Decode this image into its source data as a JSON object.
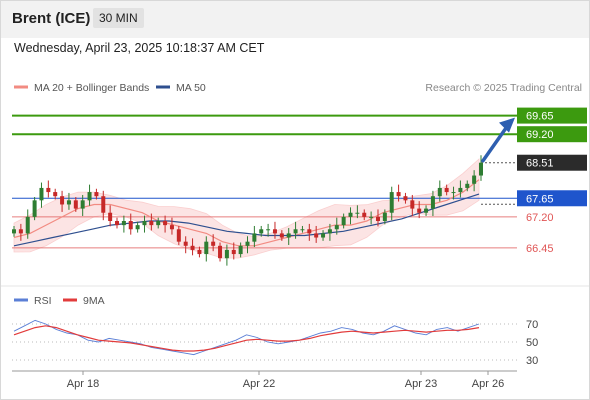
{
  "header": {
    "instrument": "Brent (ICE)",
    "timeframe": "30 MIN",
    "datetime": "Wednesday, April 23, 2025 10:18:37 AM CET"
  },
  "legend": {
    "items": [
      {
        "label": "MA 20 + Bollinger Bands",
        "color": "#f28b82"
      },
      {
        "label": "MA 50",
        "color": "#2e4f8f"
      }
    ],
    "credit": "Research © 2025 Trading Central"
  },
  "rsi_legend": {
    "items": [
      {
        "label": "RSI",
        "color": "#5b7fd6"
      },
      {
        "label": "9MA",
        "color": "#e23b3b"
      }
    ]
  },
  "chart_data": [
    {
      "type": "candlestick",
      "y_range": [
        65.6,
        70.1
      ],
      "price_levels": [
        {
          "value": "69.65",
          "role": "target",
          "color": "#3c9a0f"
        },
        {
          "value": "69.20",
          "role": "target",
          "color": "#3c9a0f"
        },
        {
          "value": "68.51",
          "role": "last",
          "color": "#333333"
        },
        {
          "value": "67.65",
          "role": "pivot",
          "color": "#1f55cc"
        },
        {
          "value": "67.20",
          "role": "support",
          "color": "#e05555"
        },
        {
          "value": "66.45",
          "role": "support",
          "color": "#e05555"
        }
      ],
      "x_ticks": [
        "Apr 18",
        "Apr 22",
        "Apr 23",
        "Apr 26"
      ],
      "close_series_approx": [
        66.9,
        66.8,
        67.2,
        67.6,
        67.9,
        67.8,
        67.7,
        67.5,
        67.6,
        67.4,
        67.6,
        67.8,
        67.7,
        67.3,
        67.1,
        67.0,
        67.1,
        66.9,
        67.0,
        67.1,
        67.0,
        67.1,
        67.0,
        66.9,
        66.6,
        66.5,
        66.4,
        66.3,
        66.6,
        66.5,
        66.2,
        66.4,
        66.3,
        66.5,
        66.6,
        66.8,
        66.9,
        66.9,
        66.8,
        66.7,
        66.8,
        66.9,
        66.9,
        66.8,
        66.7,
        66.8,
        66.9,
        67.0,
        67.2,
        67.3,
        67.3,
        67.2,
        67.2,
        67.1,
        67.3,
        67.8,
        67.7,
        67.6,
        67.4,
        67.3,
        67.4,
        67.7,
        67.9,
        67.8,
        67.8,
        67.9,
        68.0,
        68.2,
        68.51
      ],
      "ma20_approx": [
        66.7,
        66.8,
        67.0,
        67.2,
        67.4,
        67.5,
        67.5,
        67.4,
        67.3,
        67.1,
        67.0,
        66.9,
        66.8,
        66.6,
        66.5,
        66.5,
        66.6,
        66.7,
        66.8,
        66.9,
        67.0,
        67.0,
        67.1,
        67.3,
        67.4,
        67.5,
        67.5,
        67.6,
        67.8,
        68.1
      ],
      "ma50_approx": [
        66.5,
        66.6,
        66.7,
        66.8,
        66.9,
        67.0,
        67.05,
        67.1,
        67.1,
        67.05,
        66.95,
        66.85,
        66.8,
        66.75,
        66.75,
        66.75,
        66.8,
        66.85,
        66.95,
        67.05,
        67.15,
        67.3,
        67.45,
        67.6,
        67.75
      ],
      "annotation": "Bullish arrow pointing toward 69.65"
    },
    {
      "type": "line",
      "name": "RSI panel",
      "y_ticks": [
        "70",
        "50",
        "30"
      ],
      "series": [
        {
          "name": "RSI",
          "values": [
            62,
            68,
            74,
            70,
            64,
            60,
            58,
            52,
            50,
            54,
            52,
            50,
            48,
            44,
            42,
            40,
            38,
            36,
            40,
            44,
            48,
            52,
            58,
            55,
            50,
            48,
            50,
            52,
            56,
            60,
            62,
            66,
            64,
            60,
            58,
            62,
            68,
            64,
            60,
            58,
            64,
            66,
            62,
            66,
            70
          ]
        },
        {
          "name": "9MA",
          "values": [
            58,
            62,
            66,
            68,
            66,
            62,
            58,
            55,
            52,
            51,
            50,
            49,
            47,
            45,
            43,
            41,
            40,
            40,
            41,
            43,
            46,
            49,
            52,
            53,
            52,
            51,
            51,
            52,
            54,
            57,
            59,
            61,
            62,
            61,
            60,
            61,
            62,
            63,
            62,
            61,
            62,
            63,
            63,
            64,
            66
          ]
        }
      ]
    }
  ]
}
